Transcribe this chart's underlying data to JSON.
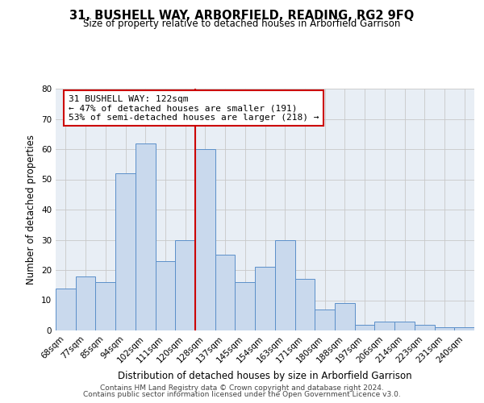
{
  "title": "31, BUSHELL WAY, ARBORFIELD, READING, RG2 9FQ",
  "subtitle": "Size of property relative to detached houses in Arborfield Garrison",
  "xlabel": "Distribution of detached houses by size in Arborfield Garrison",
  "ylabel": "Number of detached properties",
  "categories": [
    "68sqm",
    "77sqm",
    "85sqm",
    "94sqm",
    "102sqm",
    "111sqm",
    "120sqm",
    "128sqm",
    "137sqm",
    "145sqm",
    "154sqm",
    "163sqm",
    "171sqm",
    "180sqm",
    "188sqm",
    "197sqm",
    "206sqm",
    "214sqm",
    "223sqm",
    "231sqm",
    "240sqm"
  ],
  "values": [
    14,
    18,
    16,
    52,
    62,
    23,
    30,
    60,
    25,
    16,
    21,
    30,
    17,
    7,
    9,
    2,
    3,
    3,
    2,
    1,
    1
  ],
  "bar_color": "#c9d9ed",
  "bar_edge_color": "#5b8fc9",
  "plot_bg_color": "#e8eef5",
  "background_color": "#ffffff",
  "grid_color": "#c8c8c8",
  "annotation_line_color": "#cc0000",
  "annotation_box_text": "31 BUSHELL WAY: 122sqm\n← 47% of detached houses are smaller (191)\n53% of semi-detached houses are larger (218) →",
  "annotation_box_edge_color": "#cc0000",
  "ylim": [
    0,
    80
  ],
  "yticks": [
    0,
    10,
    20,
    30,
    40,
    50,
    60,
    70,
    80
  ],
  "footnote1": "Contains HM Land Registry data © Crown copyright and database right 2024.",
  "footnote2": "Contains public sector information licensed under the Open Government Licence v3.0.",
  "title_fontsize": 10.5,
  "subtitle_fontsize": 8.5,
  "xlabel_fontsize": 8.5,
  "ylabel_fontsize": 8.5,
  "tick_fontsize": 7.5,
  "annotation_fontsize": 8,
  "footnote_fontsize": 6.5
}
